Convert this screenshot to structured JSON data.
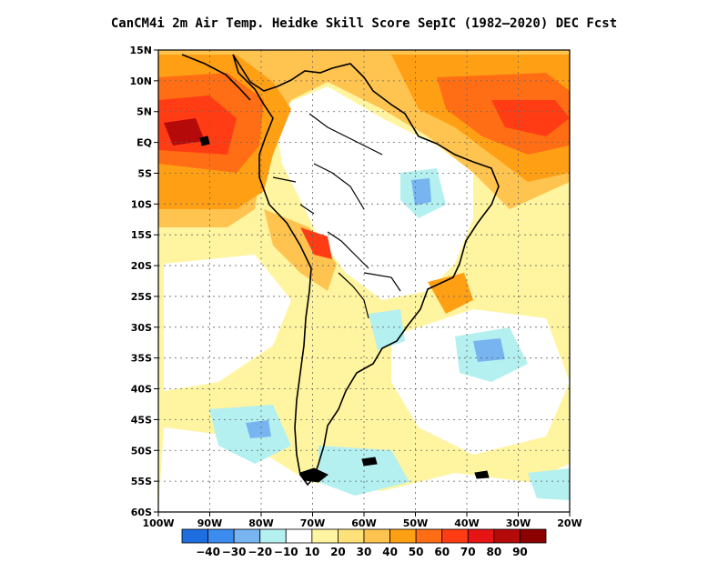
{
  "title": "CanCM4i  2m Air Temp. Heidke Skill Score SepIC (1982–2020) DEC Fcst",
  "map": {
    "lon_range": [
      -100,
      -20
    ],
    "lat_range": [
      -60,
      15
    ],
    "lat_ticks": [
      {
        "value": 15,
        "label": "15N"
      },
      {
        "value": 10,
        "label": "10N"
      },
      {
        "value": 5,
        "label": "5N"
      },
      {
        "value": 0,
        "label": "EQ"
      },
      {
        "value": -5,
        "label": "5S"
      },
      {
        "value": -10,
        "label": "10S"
      },
      {
        "value": -15,
        "label": "15S"
      },
      {
        "value": -20,
        "label": "20S"
      },
      {
        "value": -25,
        "label": "25S"
      },
      {
        "value": -30,
        "label": "30S"
      },
      {
        "value": -35,
        "label": "35S"
      },
      {
        "value": -40,
        "label": "40S"
      },
      {
        "value": -45,
        "label": "45S"
      },
      {
        "value": -50,
        "label": "50S"
      },
      {
        "value": -55,
        "label": "55S"
      },
      {
        "value": -60,
        "label": "60S"
      }
    ],
    "lon_ticks": [
      {
        "value": -100,
        "label": "100W"
      },
      {
        "value": -90,
        "label": "90W"
      },
      {
        "value": -80,
        "label": "80W"
      },
      {
        "value": -70,
        "label": "70W"
      },
      {
        "value": -60,
        "label": "60W"
      },
      {
        "value": -50,
        "label": "50W"
      },
      {
        "value": -40,
        "label": "40W"
      },
      {
        "value": -30,
        "label": "30W"
      },
      {
        "value": -20,
        "label": "20W"
      }
    ]
  },
  "colorbar": {
    "colors": [
      "#1e6ee0",
      "#3c8cf0",
      "#78b4f0",
      "#b4f0f0",
      "#ffffff",
      "#fff5a0",
      "#ffe17a",
      "#ffc350",
      "#ffa014",
      "#ff6e14",
      "#ff3c14",
      "#e61414",
      "#b40a0a",
      "#8c0000"
    ],
    "labels": [
      "−40",
      "−30",
      "−20",
      "−10",
      "10",
      "20",
      "30",
      "40",
      "50",
      "60",
      "70",
      "80",
      "90"
    ]
  },
  "colors": {
    "orange": "#ffa014",
    "yellow_light": "#fff5a0",
    "yellow": "#ffe17a",
    "gold": "#ffc350",
    "red_orange": "#ff6e14",
    "red": "#ff3c14",
    "dark_red": "#b40a0a",
    "cyan": "#b4f0f0",
    "light_blue": "#78b4f0",
    "blue": "#3c8cf0"
  }
}
